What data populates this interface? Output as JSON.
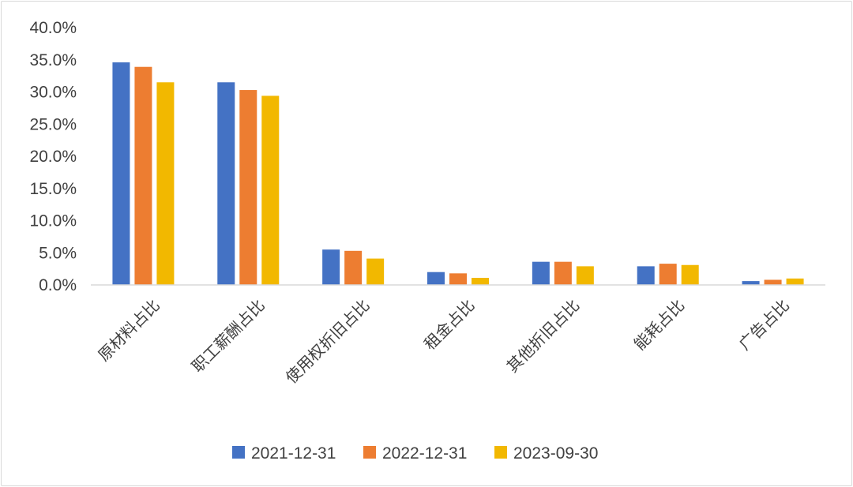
{
  "chart_data": {
    "type": "bar",
    "categories": [
      "原材料占比",
      "职工薪酬占比",
      "使用权折旧占比",
      "租金占比",
      "其他折旧占比",
      "能耗占比",
      "广告占比"
    ],
    "series": [
      {
        "name": "2021-12-31",
        "color": "#4472C4",
        "values": [
          34.6,
          31.5,
          5.5,
          2.0,
          3.6,
          2.9,
          0.6
        ]
      },
      {
        "name": "2022-12-31",
        "color": "#ED7D31",
        "values": [
          33.9,
          30.3,
          5.3,
          1.8,
          3.6,
          3.3,
          0.8
        ]
      },
      {
        "name": "2023-09-30",
        "color": "#F2B800",
        "values": [
          31.5,
          29.4,
          4.1,
          1.1,
          2.9,
          3.1,
          1.0
        ]
      }
    ],
    "yticks": [
      "0.0%",
      "5.0%",
      "10.0%",
      "15.0%",
      "20.0%",
      "25.0%",
      "30.0%",
      "35.0%",
      "40.0%"
    ],
    "ylim": [
      0,
      40
    ],
    "title": "",
    "xlabel": "",
    "ylabel": "",
    "grid": false,
    "legend_position": "bottom"
  }
}
